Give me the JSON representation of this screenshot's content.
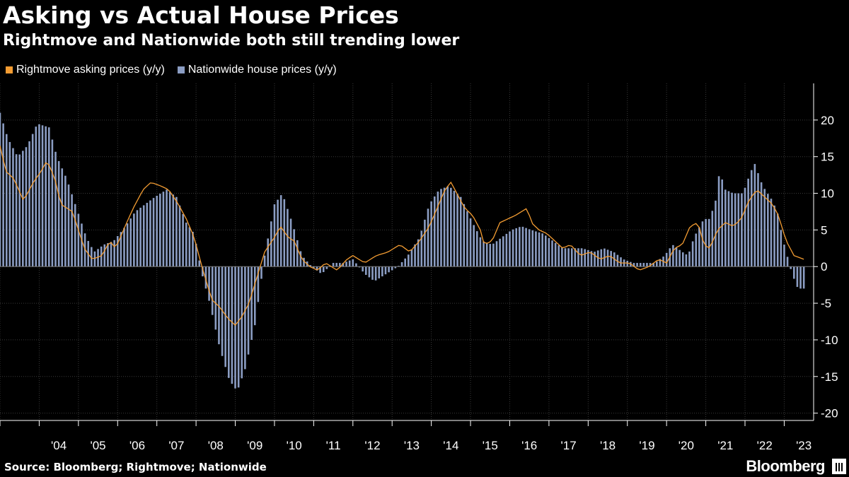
{
  "title": "Asking vs Actual House Prices",
  "subtitle": "Rightmove and Nationwide both still trending lower",
  "source": "Source: Bloomberg; Rightmove; Nationwide",
  "brand": "Bloomberg",
  "colors": {
    "background": "#000000",
    "line": "#f39c32",
    "bars": "#8b9dc3",
    "axis": "#ffffff"
  },
  "chart_data": {
    "type": "bar+line",
    "title": "Asking vs Actual House Prices",
    "subtitle": "Rightmove and Nationwide both still trending lower",
    "xlabel": "",
    "ylabel": "",
    "ylim": [
      -21,
      25
    ],
    "yticks": [
      20,
      15,
      10,
      5,
      0,
      -5,
      -10,
      -15,
      -20
    ],
    "ytick_labels": [
      "20",
      "15",
      "10",
      "5",
      "0",
      "-5",
      "-10",
      "-15",
      "-20"
    ],
    "x_start": 2003.0,
    "x_end": 2023.75,
    "xtick_labels": [
      "'04",
      "'05",
      "'06",
      "'07",
      "'08",
      "'09",
      "'10",
      "'11",
      "'12",
      "'13",
      "'14",
      "'15",
      "'16",
      "'17",
      "'18",
      "'19",
      "'20",
      "'21",
      "'22",
      "'23"
    ],
    "series": [
      {
        "name": "Rightmove asking prices (y/y)",
        "kind": "line",
        "anchors": [
          [
            2003.0,
            16.5
          ],
          [
            2003.15,
            13.0
          ],
          [
            2003.35,
            12.0
          ],
          [
            2003.6,
            9.0
          ],
          [
            2003.85,
            11.5
          ],
          [
            2004.05,
            13.0
          ],
          [
            2004.2,
            14.5
          ],
          [
            2004.4,
            12.0
          ],
          [
            2004.55,
            8.5
          ],
          [
            2004.85,
            7.5
          ],
          [
            2005.0,
            5.0
          ],
          [
            2005.15,
            2.5
          ],
          [
            2005.35,
            1.0
          ],
          [
            2005.6,
            1.5
          ],
          [
            2005.8,
            3.5
          ],
          [
            2005.95,
            2.5
          ],
          [
            2006.15,
            5.0
          ],
          [
            2006.4,
            8.0
          ],
          [
            2006.65,
            10.5
          ],
          [
            2006.85,
            11.5
          ],
          [
            2007.1,
            11.0
          ],
          [
            2007.3,
            10.5
          ],
          [
            2007.55,
            8.5
          ],
          [
            2007.75,
            6.5
          ],
          [
            2007.95,
            4.0
          ],
          [
            2008.15,
            0.0
          ],
          [
            2008.4,
            -4.5
          ],
          [
            2008.6,
            -5.5
          ],
          [
            2008.8,
            -7.0
          ],
          [
            2009.0,
            -8.0
          ],
          [
            2009.15,
            -7.0
          ],
          [
            2009.35,
            -5.0
          ],
          [
            2009.55,
            -1.5
          ],
          [
            2009.75,
            2.0
          ],
          [
            2010.0,
            4.0
          ],
          [
            2010.15,
            5.5
          ],
          [
            2010.35,
            4.0
          ],
          [
            2010.5,
            3.5
          ],
          [
            2010.7,
            1.0
          ],
          [
            2010.9,
            0.0
          ],
          [
            2011.1,
            -0.5
          ],
          [
            2011.3,
            0.5
          ],
          [
            2011.6,
            -0.5
          ],
          [
            2011.85,
            1.0
          ],
          [
            2012.0,
            1.5
          ],
          [
            2012.3,
            0.5
          ],
          [
            2012.6,
            1.5
          ],
          [
            2012.9,
            2.0
          ],
          [
            2013.2,
            3.0
          ],
          [
            2013.45,
            2.0
          ],
          [
            2013.7,
            3.5
          ],
          [
            2013.95,
            5.5
          ],
          [
            2014.15,
            8.0
          ],
          [
            2014.35,
            10.5
          ],
          [
            2014.5,
            11.5
          ],
          [
            2014.7,
            9.5
          ],
          [
            2014.85,
            8.0
          ],
          [
            2015.05,
            7.0
          ],
          [
            2015.25,
            5.0
          ],
          [
            2015.35,
            3.0
          ],
          [
            2015.55,
            3.5
          ],
          [
            2015.75,
            6.0
          ],
          [
            2015.95,
            6.5
          ],
          [
            2016.15,
            7.0
          ],
          [
            2016.45,
            8.0
          ],
          [
            2016.55,
            6.0
          ],
          [
            2016.75,
            5.0
          ],
          [
            2016.95,
            4.5
          ],
          [
            2017.15,
            3.5
          ],
          [
            2017.35,
            2.5
          ],
          [
            2017.55,
            3.0
          ],
          [
            2017.8,
            1.5
          ],
          [
            2018.05,
            2.0
          ],
          [
            2018.3,
            1.0
          ],
          [
            2018.55,
            1.5
          ],
          [
            2018.8,
            0.5
          ],
          [
            2019.05,
            0.5
          ],
          [
            2019.3,
            -0.5
          ],
          [
            2019.55,
            0.0
          ],
          [
            2019.8,
            1.0
          ],
          [
            2020.0,
            0.5
          ],
          [
            2020.2,
            2.5
          ],
          [
            2020.4,
            3.0
          ],
          [
            2020.6,
            5.5
          ],
          [
            2020.8,
            6.0
          ],
          [
            2020.95,
            3.0
          ],
          [
            2021.1,
            2.5
          ],
          [
            2021.3,
            5.0
          ],
          [
            2021.5,
            6.0
          ],
          [
            2021.7,
            5.5
          ],
          [
            2021.9,
            6.5
          ],
          [
            2022.1,
            9.0
          ],
          [
            2022.3,
            10.5
          ],
          [
            2022.5,
            9.5
          ],
          [
            2022.7,
            8.5
          ],
          [
            2022.85,
            7.0
          ],
          [
            2023.05,
            3.5
          ],
          [
            2023.25,
            1.5
          ],
          [
            2023.5,
            1.0
          ]
        ]
      },
      {
        "name": "Nationwide house prices (y/y)",
        "kind": "bar",
        "anchors": [
          [
            2003.0,
            21.0
          ],
          [
            2003.2,
            17.5
          ],
          [
            2003.45,
            15.0
          ],
          [
            2003.7,
            16.5
          ],
          [
            2003.95,
            19.5
          ],
          [
            2004.25,
            19.0
          ],
          [
            2004.45,
            15.0
          ],
          [
            2004.7,
            12.0
          ],
          [
            2004.95,
            8.0
          ],
          [
            2005.2,
            4.0
          ],
          [
            2005.4,
            2.0
          ],
          [
            2005.65,
            3.0
          ],
          [
            2005.9,
            3.5
          ],
          [
            2006.2,
            5.5
          ],
          [
            2006.45,
            7.5
          ],
          [
            2006.7,
            8.5
          ],
          [
            2006.95,
            9.5
          ],
          [
            2007.25,
            10.5
          ],
          [
            2007.5,
            9.5
          ],
          [
            2007.75,
            6.0
          ],
          [
            2007.95,
            4.5
          ],
          [
            2008.15,
            -1.0
          ],
          [
            2008.35,
            -5.0
          ],
          [
            2008.6,
            -11.0
          ],
          [
            2008.85,
            -15.5
          ],
          [
            2009.05,
            -17.0
          ],
          [
            2009.25,
            -14.0
          ],
          [
            2009.5,
            -8.0
          ],
          [
            2009.75,
            1.5
          ],
          [
            2010.0,
            8.5
          ],
          [
            2010.2,
            10.0
          ],
          [
            2010.45,
            6.0
          ],
          [
            2010.7,
            1.5
          ],
          [
            2010.95,
            0.0
          ],
          [
            2011.2,
            -1.0
          ],
          [
            2011.5,
            0.5
          ],
          [
            2011.75,
            0.5
          ],
          [
            2012.0,
            1.0
          ],
          [
            2012.3,
            -1.0
          ],
          [
            2012.55,
            -2.0
          ],
          [
            2012.85,
            -1.0
          ],
          [
            2013.15,
            0.0
          ],
          [
            2013.4,
            1.5
          ],
          [
            2013.7,
            4.0
          ],
          [
            2013.95,
            8.5
          ],
          [
            2014.2,
            10.5
          ],
          [
            2014.45,
            11.0
          ],
          [
            2014.75,
            9.5
          ],
          [
            2015.05,
            6.0
          ],
          [
            2015.3,
            3.5
          ],
          [
            2015.55,
            3.0
          ],
          [
            2015.8,
            4.0
          ],
          [
            2016.05,
            5.0
          ],
          [
            2016.3,
            5.5
          ],
          [
            2016.55,
            5.0
          ],
          [
            2016.85,
            4.5
          ],
          [
            2017.1,
            3.5
          ],
          [
            2017.35,
            2.5
          ],
          [
            2017.6,
            2.5
          ],
          [
            2017.85,
            2.5
          ],
          [
            2018.15,
            2.0
          ],
          [
            2018.4,
            2.5
          ],
          [
            2018.65,
            2.0
          ],
          [
            2018.9,
            1.0
          ],
          [
            2019.15,
            0.5
          ],
          [
            2019.45,
            0.5
          ],
          [
            2019.7,
            0.5
          ],
          [
            2019.95,
            1.5
          ],
          [
            2020.15,
            3.0
          ],
          [
            2020.4,
            2.0
          ],
          [
            2020.55,
            1.5
          ],
          [
            2020.7,
            4.0
          ],
          [
            2020.95,
            6.5
          ],
          [
            2021.1,
            6.5
          ],
          [
            2021.25,
            9.0
          ],
          [
            2021.35,
            13.0
          ],
          [
            2021.5,
            10.5
          ],
          [
            2021.7,
            10.0
          ],
          [
            2021.95,
            10.0
          ],
          [
            2022.15,
            13.0
          ],
          [
            2022.25,
            14.0
          ],
          [
            2022.45,
            11.0
          ],
          [
            2022.7,
            9.0
          ],
          [
            2022.85,
            7.0
          ],
          [
            2022.95,
            4.0
          ],
          [
            2023.1,
            1.0
          ],
          [
            2023.2,
            -1.0
          ],
          [
            2023.35,
            -3.0
          ],
          [
            2023.5,
            -3.0
          ]
        ]
      }
    ]
  }
}
